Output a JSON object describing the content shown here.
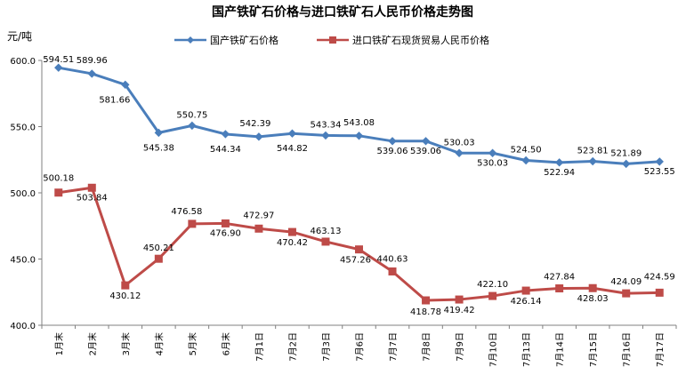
{
  "chart_data": {
    "type": "line",
    "title": "国产铁矿石价格与进口铁矿石人民币价格走势图",
    "ylabel": "元/吨",
    "xlabel": "",
    "ylim": [
      400,
      600
    ],
    "yticks": [
      "400.0",
      "450.0",
      "500.0",
      "550.0",
      "600.0"
    ],
    "categories": [
      "1月末",
      "2月末",
      "3月末",
      "4月末",
      "5月末",
      "6月末",
      "7月1日",
      "7月2日",
      "7月3日",
      "7月6日",
      "7月7日",
      "7月8日",
      "7月9日",
      "7月10日",
      "7月13日",
      "7月14日",
      "7月15日",
      "7月16日",
      "7月17日"
    ],
    "legend_position": "top",
    "grid": false,
    "series": [
      {
        "name": "国产铁矿石价格",
        "color": "#4a7ebb",
        "marker": "diamond",
        "values": [
          594.51,
          589.96,
          581.66,
          545.38,
          550.75,
          544.34,
          542.39,
          544.82,
          543.34,
          543.08,
          539.06,
          539.06,
          530.03,
          530.03,
          524.5,
          522.94,
          523.81,
          521.89,
          523.55
        ],
        "labels": [
          "594.51",
          "589.96",
          "581.66",
          "545.38",
          "550.75",
          "544.34",
          "542.39",
          "544.82",
          "543.34",
          "543.08",
          "539.06",
          "539.06",
          "530.03",
          "530.03",
          "524.50",
          "522.94",
          "523.81",
          "521.89",
          "523.55"
        ]
      },
      {
        "name": "进口铁矿石现货贸易人民币价格",
        "color": "#be4b48",
        "marker": "square",
        "values": [
          500.18,
          503.84,
          430.12,
          450.21,
          476.58,
          476.9,
          472.97,
          470.42,
          463.13,
          457.26,
          440.63,
          418.78,
          419.42,
          422.1,
          426.14,
          427.84,
          428.03,
          424.09,
          424.59
        ],
        "labels": [
          "500.18",
          "503.84",
          "430.12",
          "450.21",
          "476.58",
          "476.90",
          "472.97",
          "470.42",
          "463.13",
          "457.26",
          "440.63",
          "418.78",
          "419.42",
          "422.10",
          "426.14",
          "427.84",
          "428.03",
          "424.09",
          "424.59"
        ]
      }
    ]
  }
}
